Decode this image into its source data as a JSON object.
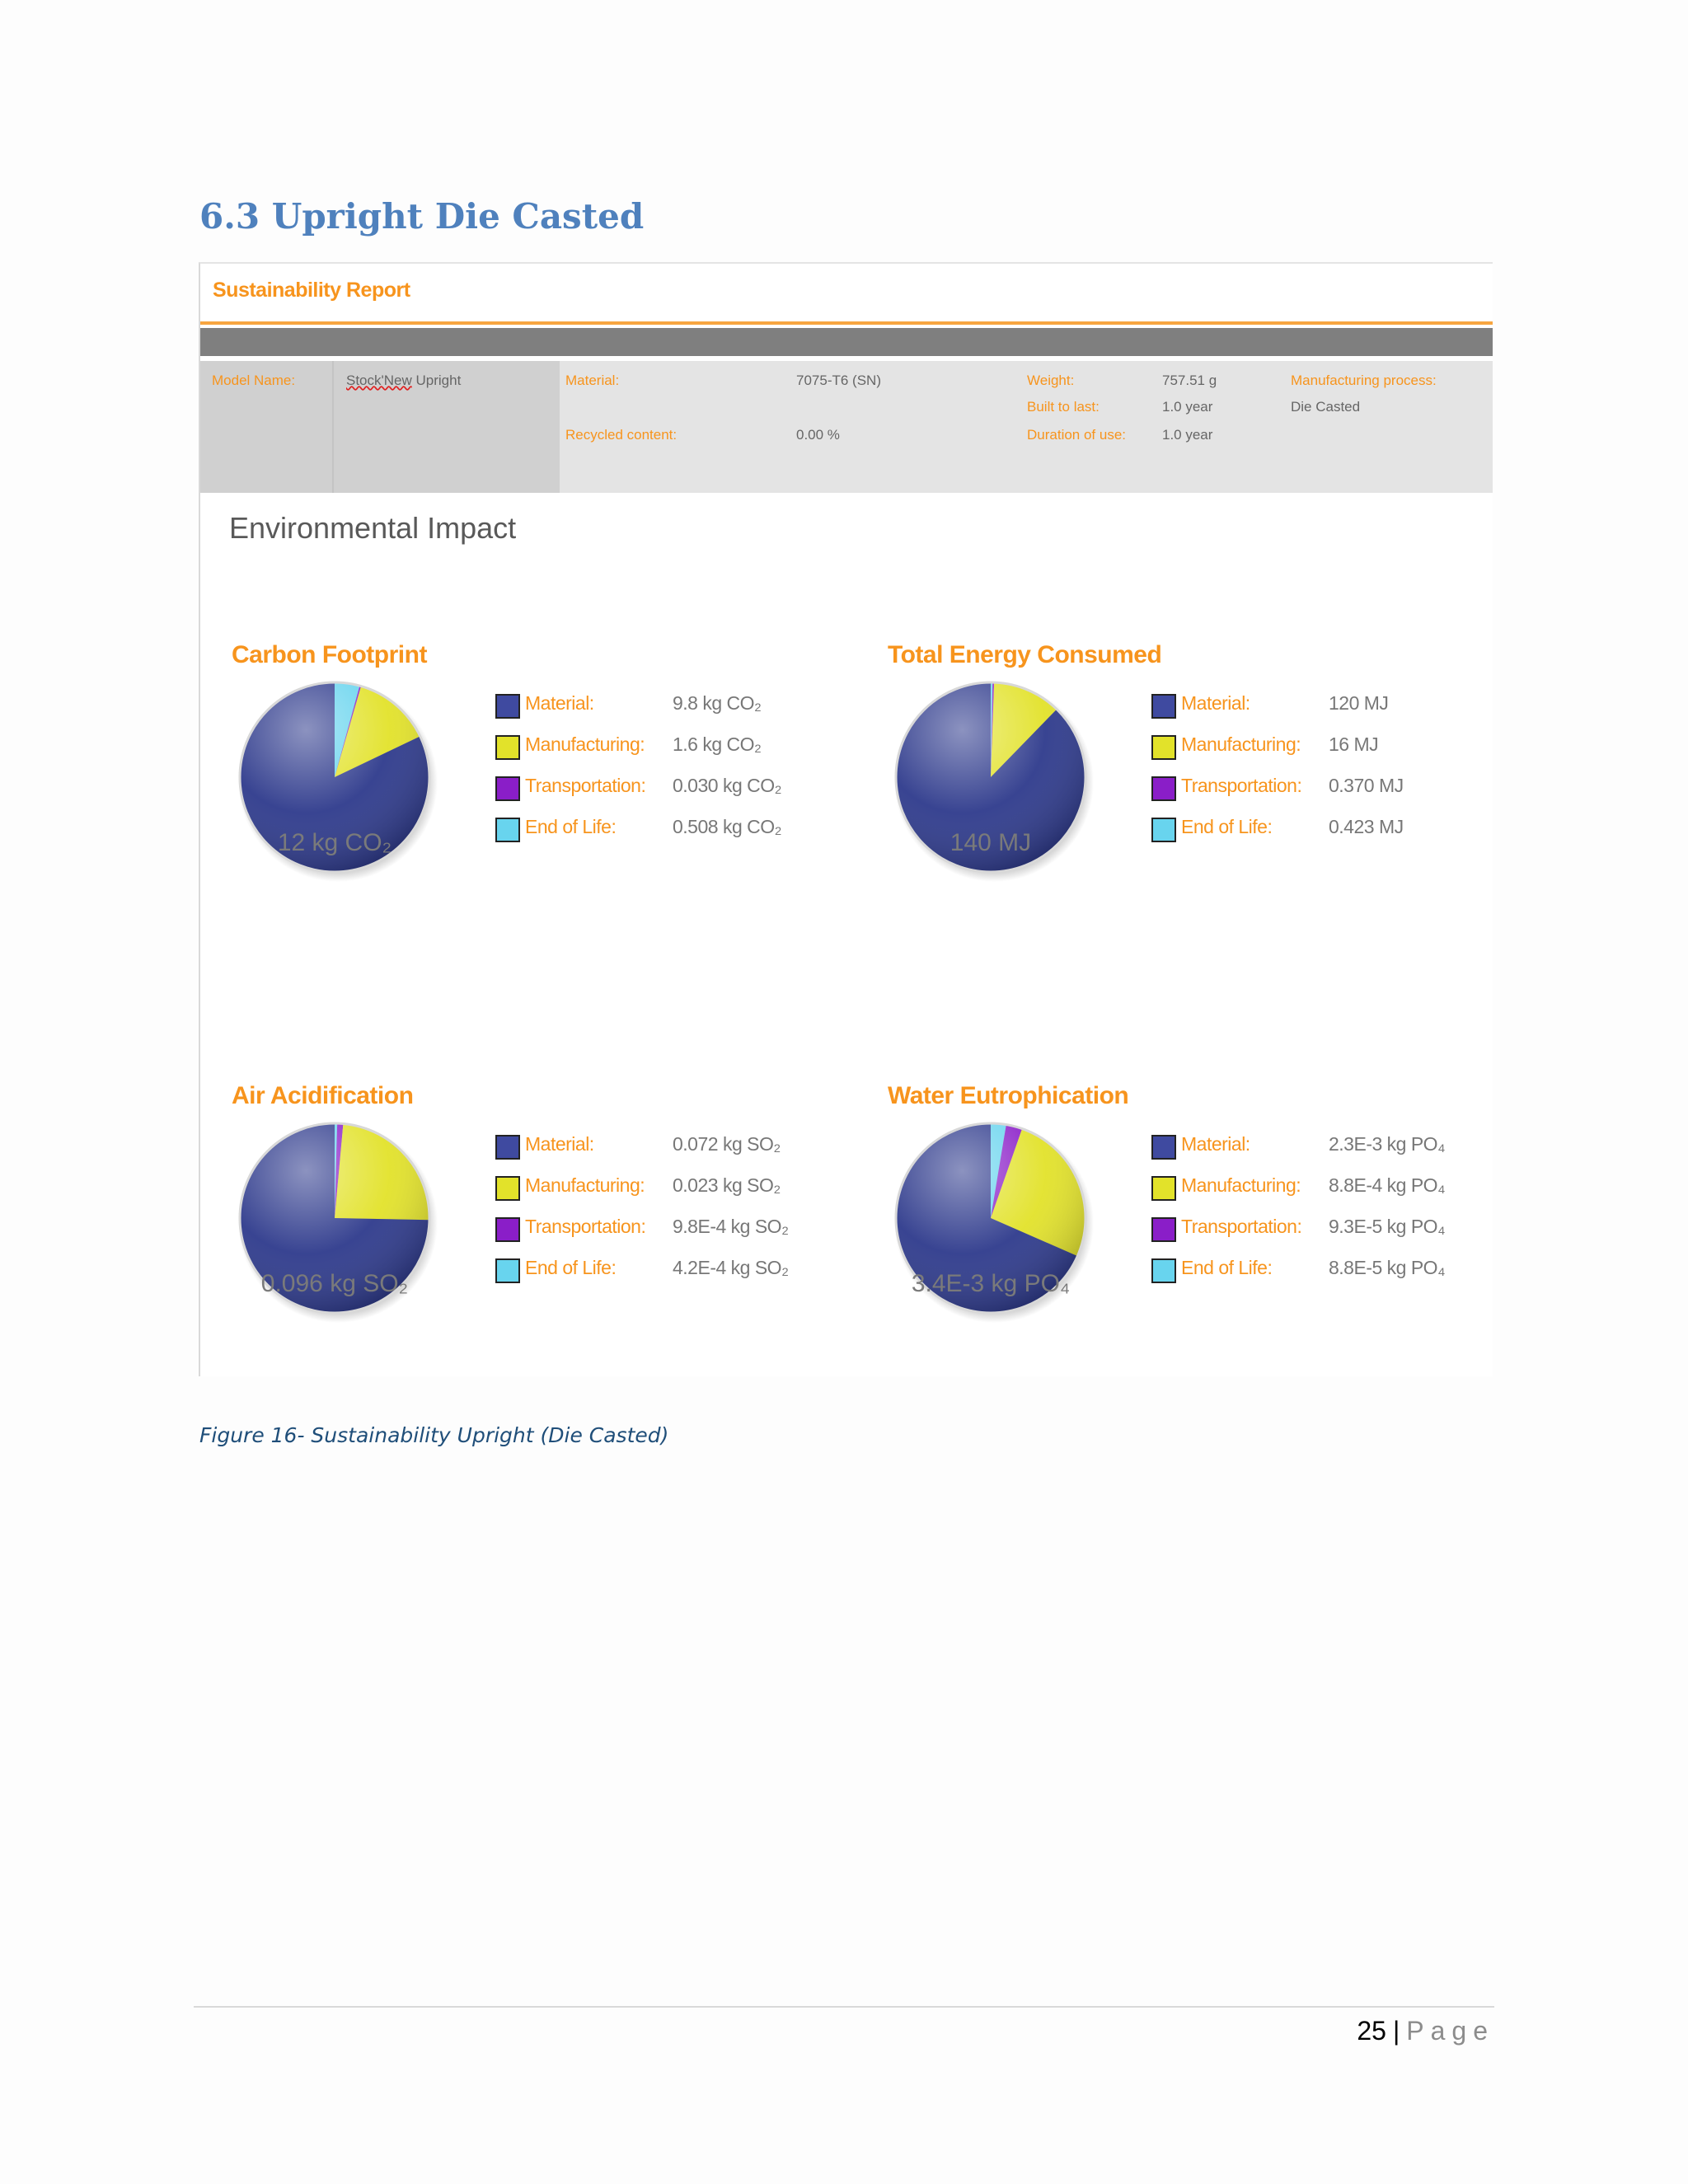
{
  "section_heading": "6.3 Upright Die Casted",
  "report": {
    "title": "Sustainability Report",
    "info": {
      "model_name_label": "Model Name:",
      "model_name_value_part1": "Stock'New",
      "model_name_value_part2": " Upright",
      "material_label": "Material:",
      "material_value": "7075-T6 (SN)",
      "recycled_label": "Recycled content:",
      "recycled_value": "0.00 %",
      "weight_label": "Weight:",
      "weight_value": "757.51 g",
      "built_label": "Built to last:",
      "built_value": "1.0 year",
      "duration_label": "Duration of use:",
      "duration_value": "1.0 year",
      "process_label": "Manufacturing process:",
      "process_value": "Die Casted"
    },
    "env_title": "Environmental Impact",
    "legend_labels": {
      "material": "Material:",
      "manufacturing": "Manufacturing:",
      "transportation": "Transportation:",
      "end_of_life": "End of Life:"
    },
    "colors": {
      "material": "#2e3a8c",
      "manufacturing": "#e2e22a",
      "transportation": "#8a1ec8",
      "end_of_life": "#68d4ee",
      "swatch_material": "#3f4aa0",
      "accent_orange": "#f7941d"
    }
  },
  "chart_data": [
    {
      "type": "pie",
      "title": "Carbon Footprint",
      "total": "12 kg CO₂",
      "categories": [
        "Material",
        "Manufacturing",
        "Transportation",
        "End of Life"
      ],
      "values": [
        9.8,
        1.6,
        0.03,
        0.508
      ],
      "value_labels": [
        "9.8 kg CO₂",
        "1.6 kg CO₂",
        "0.030 kg CO₂",
        "0.508 kg CO₂"
      ]
    },
    {
      "type": "pie",
      "title": "Total Energy Consumed",
      "total": "140 MJ",
      "categories": [
        "Material",
        "Manufacturing",
        "Transportation",
        "End of Life"
      ],
      "values": [
        120,
        16,
        0.37,
        0.423
      ],
      "value_labels": [
        "120 MJ",
        "16 MJ",
        "0.370 MJ",
        "0.423 MJ"
      ]
    },
    {
      "type": "pie",
      "title": "Air Acidification",
      "total": "0.096 kg SO₂",
      "categories": [
        "Material",
        "Manufacturing",
        "Transportation",
        "End of Life"
      ],
      "values": [
        0.072,
        0.023,
        0.00098,
        0.00042
      ],
      "value_labels": [
        "0.072 kg SO₂",
        "0.023 kg SO₂",
        "9.8E-4 kg SO₂",
        "4.2E-4 kg SO₂"
      ]
    },
    {
      "type": "pie",
      "title": "Water Eutrophication",
      "total": "3.4E-3 kg PO₄",
      "categories": [
        "Material",
        "Manufacturing",
        "Transportation",
        "End of Life"
      ],
      "values": [
        0.0023,
        0.00088,
        9.3e-05,
        8.8e-05
      ],
      "value_labels": [
        "2.3E-3 kg PO₄",
        "8.8E-4 kg PO₄",
        "9.3E-5 kg PO₄",
        "8.8E-5 kg PO₄"
      ]
    }
  ],
  "caption": "Figure 16- Sustainability Upright (Die Casted)",
  "footer": {
    "page_number": "25",
    "separator": "|",
    "page_word": "Page"
  }
}
